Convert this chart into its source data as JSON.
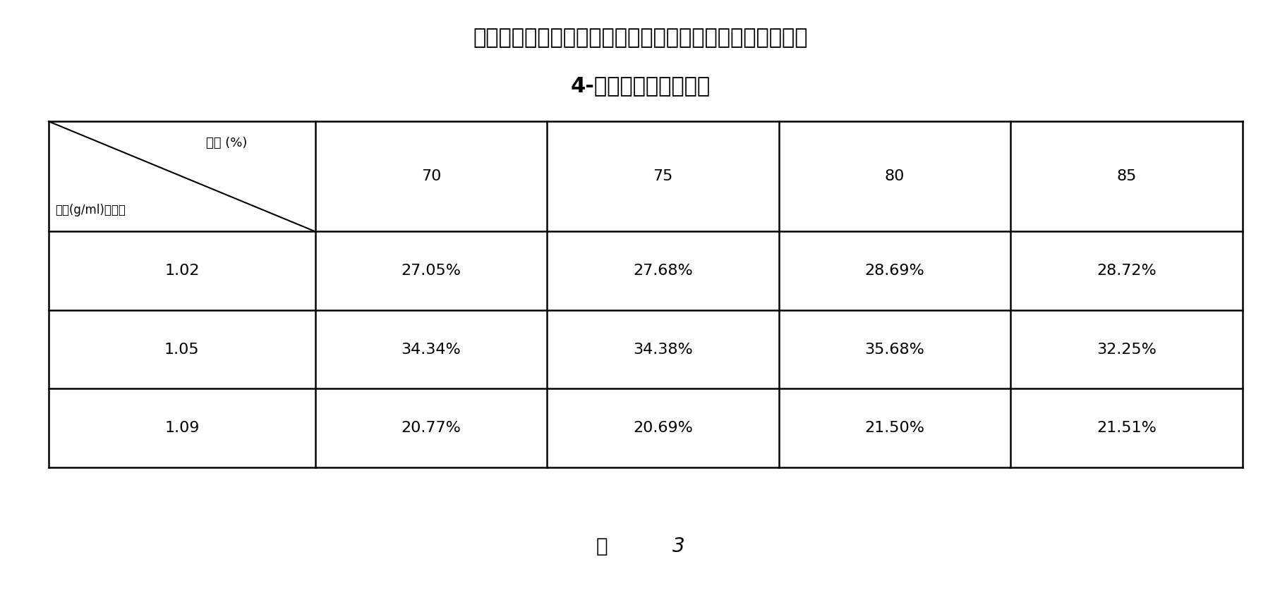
{
  "title_line1": "不同浓度乙醇与不同密度浓缩洗脱液、醇沉实验所获浸膏中",
  "title_line2": "4-羟基异亮氨酸含量表",
  "col_header_label": "醇度 (%)",
  "row_header_label1": "密度(g/ml)．含量",
  "col_headers": [
    "70",
    "75",
    "80",
    "85"
  ],
  "row_headers": [
    "1.02",
    "1.05",
    "1.09"
  ],
  "data": [
    [
      "27.05%",
      "27.68%",
      "28.69%",
      "28.72%"
    ],
    [
      "34.34%",
      "34.38%",
      "35.68%",
      "32.25%"
    ],
    [
      "20.77%",
      "20.69%",
      "21.50%",
      "21.51%"
    ]
  ],
  "caption_char": "图",
  "caption_num": "3",
  "background_color": "#ffffff",
  "table_line_color": "#000000",
  "title_fontsize": 22,
  "subtitle_fontsize": 22,
  "header_fontsize": 14,
  "cell_fontsize": 16,
  "caption_fontsize": 20
}
